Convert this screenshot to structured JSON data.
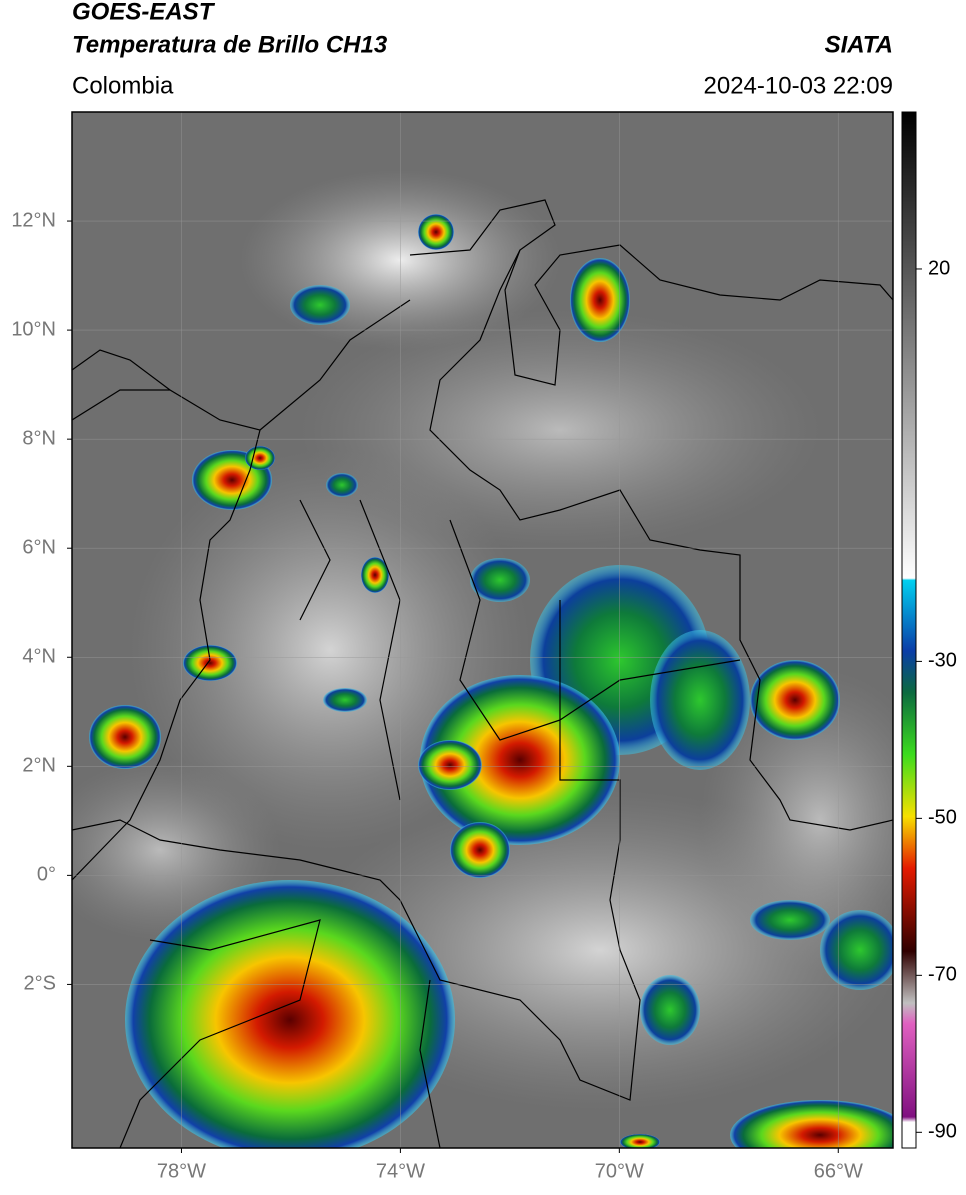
{
  "header": {
    "title": "GOES-EAST",
    "subtitle": "Temperatura de Brillo CH13",
    "source": "SIATA",
    "region": "Colombia",
    "timestamp": "2024-10-03 22:09"
  },
  "map": {
    "lonlim": [
      -80,
      -65
    ],
    "latlim": [
      -5,
      14
    ],
    "xticks": [
      {
        "value": -78,
        "label": "78°W"
      },
      {
        "value": -74,
        "label": "74°W"
      },
      {
        "value": -70,
        "label": "70°W"
      },
      {
        "value": -66,
        "label": "66°W"
      }
    ],
    "yticks": [
      {
        "value": 12,
        "label": "12°N"
      },
      {
        "value": 10,
        "label": "10°N"
      },
      {
        "value": 8,
        "label": "8°N"
      },
      {
        "value": 6,
        "label": "6°N"
      },
      {
        "value": 4,
        "label": "4°N"
      },
      {
        "value": 2,
        "label": "2°N"
      },
      {
        "value": 0,
        "label": "0°"
      },
      {
        "value": -2,
        "label": "2°S"
      }
    ],
    "grid": true
  },
  "colorbar": {
    "lim": [
      -92,
      40
    ],
    "ticks": [
      20,
      -30,
      -50,
      -70,
      -90
    ]
  }
}
